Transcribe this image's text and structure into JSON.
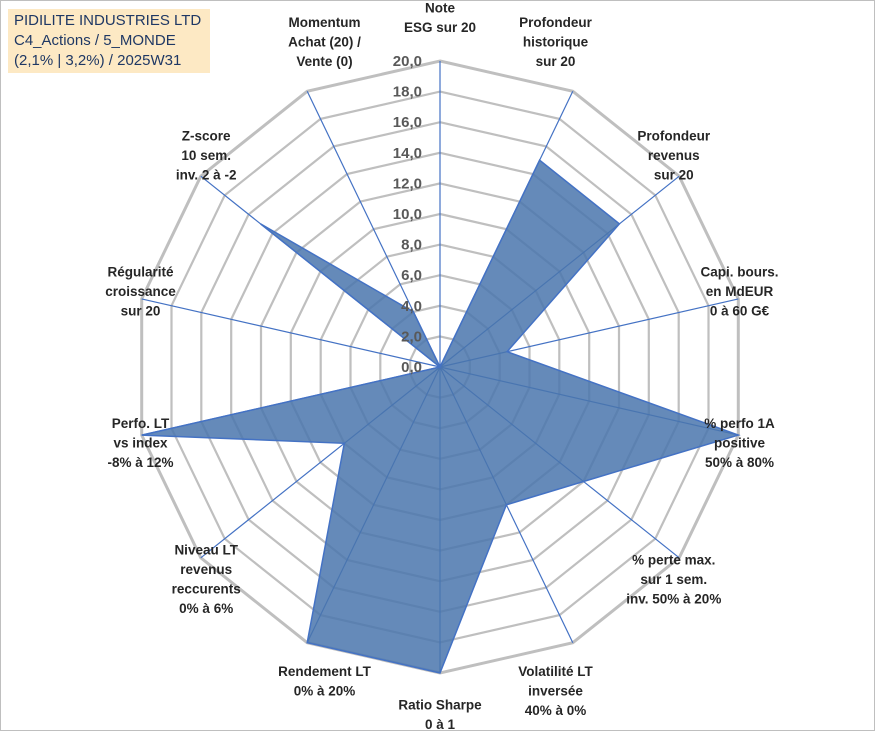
{
  "title": {
    "line1": "PIDILITE INDUSTRIES LTD",
    "line2": "C4_Actions / 5_MONDE",
    "line3": "(2,1% | 3,2%) / 2025W31"
  },
  "chart_data": {
    "type": "radar",
    "rmin": 0,
    "rmax": 20,
    "tick_step": 2,
    "tick_labels": [
      "0,0",
      "2,0",
      "4,0",
      "6,0",
      "8,0",
      "10,0",
      "12,0",
      "14,0",
      "16,0",
      "18,0",
      "20,0"
    ],
    "axes": [
      [
        "Note",
        "ESG sur 20"
      ],
      [
        "Profondeur",
        "historique",
        "sur 20"
      ],
      [
        "Profondeur",
        "revenus",
        "sur 20"
      ],
      [
        "Capi. bours.",
        "en MdEUR",
        "0 à 60 G€"
      ],
      [
        "% perfo 1A",
        "positive",
        "50% à 80%"
      ],
      [
        "% perte max.",
        "sur 1 sem.",
        "inv. 50% à 20%"
      ],
      [
        "Volatilité LT",
        "inversée",
        "40% à 0%"
      ],
      [
        "Ratio Sharpe",
        "0 à 1"
      ],
      [
        "Rendement LT",
        "0% à 20%"
      ],
      [
        "Niveau LT",
        "revenus",
        "reccurents",
        "0% à 6%"
      ],
      [
        "Perfo. LT",
        "vs index",
        "-8% à 12%"
      ],
      [
        "Régularité",
        "croissance",
        "sur 20"
      ],
      [
        "Z-score",
        "10 sem.",
        "inv. 2 à -2"
      ],
      [
        "Momentum",
        "Achat (20) /",
        "Vente (0)"
      ]
    ],
    "values": [
      0,
      15,
      15,
      4.5,
      20,
      12,
      10,
      20,
      20,
      8,
      20,
      0,
      15,
      4
    ],
    "fill_color": "#4a76ad",
    "line_color": "#4472c4",
    "grid_color": "#bfbfbf"
  }
}
